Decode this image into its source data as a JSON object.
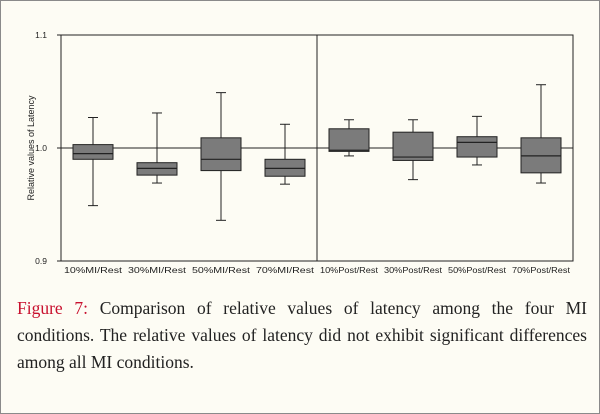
{
  "chart_data": {
    "type": "boxplot",
    "title": "",
    "xlabel": "",
    "ylabel": "Relative values of Latency",
    "ylim": [
      0.9,
      1.1
    ],
    "yticks": [
      "0.9",
      "1.0",
      "1.1"
    ],
    "reference_line": 1.0,
    "categories": [
      "10%MI/Rest",
      "30%MI/Rest",
      "50%MI/Rest",
      "70%MI/Rest",
      "10%Post/Rest",
      "30%Post/Rest",
      "50%Post/Rest",
      "70%Post/Rest"
    ],
    "boxes": [
      {
        "min": 0.949,
        "q1": 0.99,
        "median": 0.995,
        "q3": 1.003,
        "max": 1.027
      },
      {
        "min": 0.969,
        "q1": 0.976,
        "median": 0.982,
        "q3": 0.987,
        "max": 1.031
      },
      {
        "min": 0.936,
        "q1": 0.98,
        "median": 0.99,
        "q3": 1.009,
        "max": 1.049
      },
      {
        "min": 0.968,
        "q1": 0.975,
        "median": 0.982,
        "q3": 0.99,
        "max": 1.021
      },
      {
        "min": 0.993,
        "q1": 0.997,
        "median": 0.998,
        "q3": 1.017,
        "max": 1.025
      },
      {
        "min": 0.972,
        "q1": 0.989,
        "median": 0.992,
        "q3": 1.014,
        "max": 1.025
      },
      {
        "min": 0.985,
        "q1": 0.992,
        "median": 1.005,
        "q3": 1.01,
        "max": 1.028
      },
      {
        "min": 0.969,
        "q1": 0.978,
        "median": 0.993,
        "q3": 1.009,
        "max": 1.056
      }
    ],
    "group_divider_after_index": 3
  },
  "caption": {
    "label": "Figure 7:",
    "text": " Comparison of relative values of latency among the four MI conditions. The relative values of latency did not exhibit significant differences among all MI conditions."
  }
}
